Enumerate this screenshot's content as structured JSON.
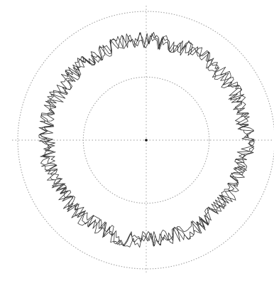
{
  "chart_data": {
    "type": "line",
    "coordinate_system": "polar",
    "title": "",
    "xlabel": "",
    "ylabel": "",
    "tick_labels": [],
    "legend": "none",
    "grid": true,
    "reference_circles": [
      {
        "radius": 0.49,
        "style": "dotted"
      },
      {
        "radius": 1.0,
        "style": "dotted"
      }
    ],
    "axis_range_r": [
      0,
      1.0
    ],
    "center_marker": true,
    "series": [
      {
        "color": "#2a2a2a",
        "mean_radius": 0.775,
        "values": [
          {
            "angle": 0,
            "r": 0.78
          },
          {
            "angle": 15,
            "r": 0.75
          },
          {
            "angle": 30,
            "r": 0.8
          },
          {
            "angle": 45,
            "r": 0.77
          },
          {
            "angle": 60,
            "r": 0.79
          },
          {
            "angle": 75,
            "r": 0.76
          },
          {
            "angle": 90,
            "r": 0.81
          },
          {
            "angle": 105,
            "r": 0.75
          },
          {
            "angle": 120,
            "r": 0.78
          },
          {
            "angle": 135,
            "r": 0.74
          },
          {
            "angle": 150,
            "r": 0.79
          },
          {
            "angle": 165,
            "r": 0.77
          },
          {
            "angle": 180,
            "r": 0.76
          },
          {
            "angle": 195,
            "r": 0.8
          },
          {
            "angle": 210,
            "r": 0.76
          },
          {
            "angle": 225,
            "r": 0.78
          },
          {
            "angle": 240,
            "r": 0.75
          },
          {
            "angle": 255,
            "r": 0.79
          },
          {
            "angle": 270,
            "r": 0.77
          },
          {
            "angle": 285,
            "r": 0.81
          },
          {
            "angle": 300,
            "r": 0.76
          },
          {
            "angle": 315,
            "r": 0.78
          },
          {
            "angle": 330,
            "r": 0.75
          },
          {
            "angle": 345,
            "r": 0.79
          }
        ],
        "band": [
          0.72,
          0.83
        ]
      }
    ]
  },
  "colors": {
    "background": "#ffffff",
    "grid": "#9a9a9a",
    "trace": "#2a2a2a",
    "center": "#111111"
  }
}
